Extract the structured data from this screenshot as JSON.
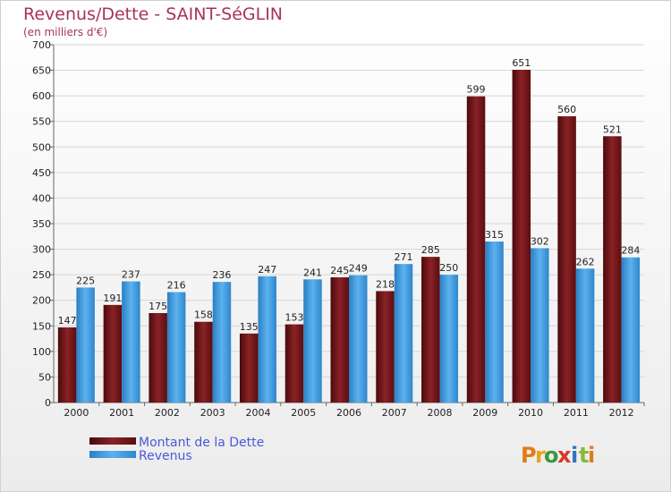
{
  "colors": {
    "dette": "#7a1a1e",
    "revenus": "#3f9be0",
    "title": "#a83262",
    "legend_text": "#4a5ad8"
  },
  "chart_data": {
    "type": "bar",
    "title": "Revenus/Dette - SAINT-SéGLIN",
    "subtitle": "(en milliers d'€)",
    "categories": [
      "2000",
      "2001",
      "2002",
      "2003",
      "2004",
      "2005",
      "2006",
      "2007",
      "2008",
      "2009",
      "2010",
      "2011",
      "2012"
    ],
    "series": [
      {
        "name": "Montant de la Dette",
        "values": [
          147,
          191,
          175,
          158,
          135,
          153,
          245,
          218,
          285,
          599,
          651,
          560,
          521
        ]
      },
      {
        "name": "Revenus",
        "values": [
          225,
          237,
          216,
          236,
          247,
          241,
          249,
          271,
          250,
          315,
          302,
          262,
          284
        ]
      }
    ],
    "ylim": [
      0,
      700
    ],
    "yticks": [
      0,
      50,
      100,
      150,
      200,
      250,
      300,
      350,
      400,
      450,
      500,
      550,
      600,
      650,
      700
    ],
    "grid": true,
    "legend": "bottom-left"
  },
  "logo": {
    "text": "Proxiti"
  }
}
